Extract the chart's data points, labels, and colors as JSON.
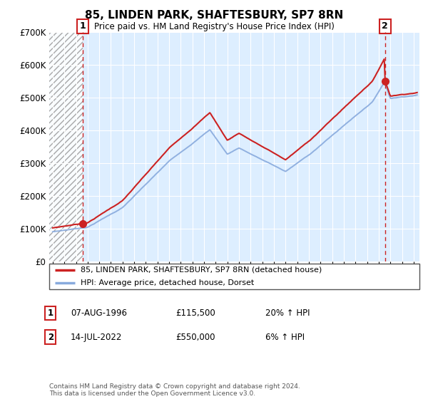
{
  "title": "85, LINDEN PARK, SHAFTESBURY, SP7 8RN",
  "subtitle": "Price paid vs. HM Land Registry's House Price Index (HPI)",
  "legend_line1": "85, LINDEN PARK, SHAFTESBURY, SP7 8RN (detached house)",
  "legend_line2": "HPI: Average price, detached house, Dorset",
  "annotation1_label": "1",
  "annotation1_date": "07-AUG-1996",
  "annotation1_price": "£115,500",
  "annotation1_hpi": "20% ↑ HPI",
  "annotation2_label": "2",
  "annotation2_date": "14-JUL-2022",
  "annotation2_price": "£550,000",
  "annotation2_hpi": "6% ↑ HPI",
  "footnote": "Contains HM Land Registry data © Crown copyright and database right 2024.\nThis data is licensed under the Open Government Licence v3.0.",
  "line1_color": "#cc2222",
  "line2_color": "#88aadd",
  "dot_color": "#cc2222",
  "vline_color": "#cc2222",
  "bg_color": "#ddeeff",
  "hatch_color": "#bbbbbb",
  "ylim": [
    0,
    700000
  ],
  "yticks": [
    0,
    100000,
    200000,
    300000,
    400000,
    500000,
    600000,
    700000
  ],
  "sale1_x": 1996.6,
  "sale1_y": 115500,
  "sale2_x": 2022.54,
  "sale2_y": 550000,
  "xlim": [
    1993.7,
    2025.5
  ]
}
